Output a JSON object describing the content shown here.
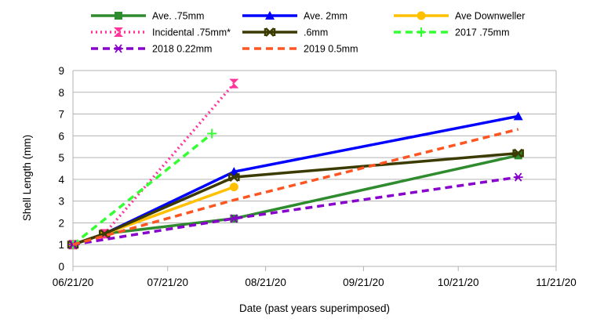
{
  "chart_data": {
    "type": "line",
    "title": "",
    "xlabel": "Date (past years superimposed)",
    "ylabel": "Shell Length (mm)",
    "ylim": [
      0,
      9
    ],
    "xlim": [
      "2020-06-21",
      "2020-11-21"
    ],
    "x_ticks": [
      "06/21/20",
      "07/21/20",
      "08/21/20",
      "09/21/20",
      "10/21/20",
      "11/21/20"
    ],
    "y_ticks": [
      0,
      1,
      2,
      3,
      4,
      5,
      6,
      7,
      8,
      9
    ],
    "grid": "horizontal",
    "legend_position": "top",
    "series": [
      {
        "name": "Ave. .75mm",
        "color": "#2e8b2e",
        "dash": "solid",
        "marker": "square",
        "points": [
          [
            "2020-06-21",
            1.0
          ],
          [
            "2020-07-01",
            1.5
          ],
          [
            "2020-08-11",
            2.2
          ],
          [
            "2020-11-09",
            5.1
          ]
        ]
      },
      {
        "name": "Ave. 2mm",
        "color": "#0000ff",
        "dash": "solid",
        "marker": "triangle",
        "points": [
          [
            "2020-06-21",
            1.0
          ],
          [
            "2020-07-01",
            1.5
          ],
          [
            "2020-08-11",
            4.35
          ],
          [
            "2020-11-09",
            6.9
          ]
        ]
      },
      {
        "name": "Ave Downweller",
        "color": "#ffc000",
        "dash": "solid",
        "marker": "circle",
        "points": [
          [
            "2020-06-21",
            1.0
          ],
          [
            "2020-07-01",
            1.5
          ],
          [
            "2020-08-11",
            3.65
          ]
        ]
      },
      {
        "name": "Incidental .75mm*",
        "color": "#ff3399",
        "dash": "dot",
        "marker": "hourglass",
        "points": [
          [
            "2020-06-21",
            1.0
          ],
          [
            "2020-07-01",
            1.5
          ],
          [
            "2020-08-11",
            8.4
          ]
        ]
      },
      {
        "name": ".6mm",
        "color": "#3b3b00",
        "dash": "solid",
        "marker": "xbar",
        "points": [
          [
            "2020-06-21",
            1.0
          ],
          [
            "2020-07-01",
            1.5
          ],
          [
            "2020-08-11",
            4.1
          ],
          [
            "2020-11-09",
            5.2
          ]
        ]
      },
      {
        "name": "2017 .75mm",
        "color": "#33ff33",
        "dash": "dash",
        "marker": "plus",
        "points": [
          [
            "2020-06-21",
            1.0
          ],
          [
            "2020-08-04",
            6.1
          ]
        ]
      },
      {
        "name": "2018 0.22mm",
        "color": "#8800cc",
        "dash": "dash",
        "marker": "asterisk",
        "points": [
          [
            "2020-06-21",
            1.0
          ],
          [
            "2020-08-11",
            2.2
          ],
          [
            "2020-11-09",
            4.1
          ]
        ]
      },
      {
        "name": "2019 0.5mm",
        "color": "#ff5522",
        "dash": "dash",
        "marker": "none",
        "points": [
          [
            "2020-06-21",
            1.0
          ],
          [
            "2020-08-11",
            3.05
          ],
          [
            "2020-11-09",
            6.3
          ]
        ]
      }
    ]
  }
}
